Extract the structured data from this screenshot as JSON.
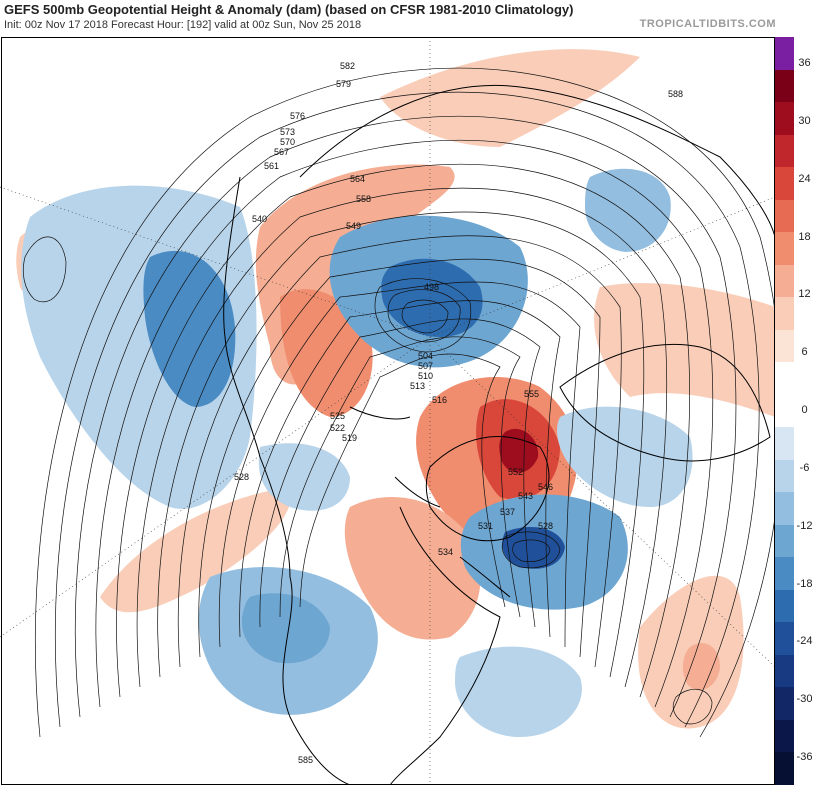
{
  "header": {
    "title": "GEFS 500mb Geopotential Height & Anomaly (dam) (based on CFSR 1981-2010 Climatology)",
    "subtitle": "Init: 00z Nov 17 2018   Forecast Hour: [192]   valid at 00z Sun, Nov 25 2018",
    "brand": "TROPICALTIDBITS.COM"
  },
  "colorbar": {
    "ticks": [
      "36",
      "30",
      "24",
      "18",
      "12",
      "6",
      "0",
      "-6",
      "-12",
      "-18",
      "-24",
      "-30",
      "-36"
    ],
    "colors": [
      "#7b1fa2",
      "#7a0018",
      "#9d0d1e",
      "#c0272d",
      "#d9473a",
      "#e66b52",
      "#f08d6f",
      "#f5ae93",
      "#f9cdb8",
      "#fbe3d6",
      "#ffffff",
      "#ffffff",
      "#d7e6f2",
      "#b8d4ea",
      "#93bee0",
      "#6ea6d2",
      "#4a8bc4",
      "#2e6cb0",
      "#20509a",
      "#183a82",
      "#112766",
      "#0a1748",
      "#061033"
    ]
  },
  "contours": {
    "low_centers": [
      "498",
      "528"
    ],
    "labels": [
      "582",
      "579",
      "576",
      "573",
      "570",
      "567",
      "564",
      "561",
      "558",
      "555",
      "552",
      "549",
      "546",
      "543",
      "540",
      "537",
      "534",
      "531",
      "528",
      "525",
      "522",
      "519",
      "516",
      "513",
      "510",
      "507",
      "504",
      "498",
      "588",
      "585"
    ]
  },
  "anomaly_features": [
    {
      "name": "Pacific trough / West coast",
      "sign": "negative"
    },
    {
      "name": "Arctic low",
      "sign": "negative"
    },
    {
      "name": "Greenland ridge",
      "sign": "positive"
    },
    {
      "name": "North Atlantic trough",
      "sign": "negative"
    },
    {
      "name": "Eastern Canada ridge",
      "sign": "positive"
    },
    {
      "name": "Western/central US trough",
      "sign": "negative"
    },
    {
      "name": "Europe ridge",
      "sign": "positive"
    }
  ]
}
